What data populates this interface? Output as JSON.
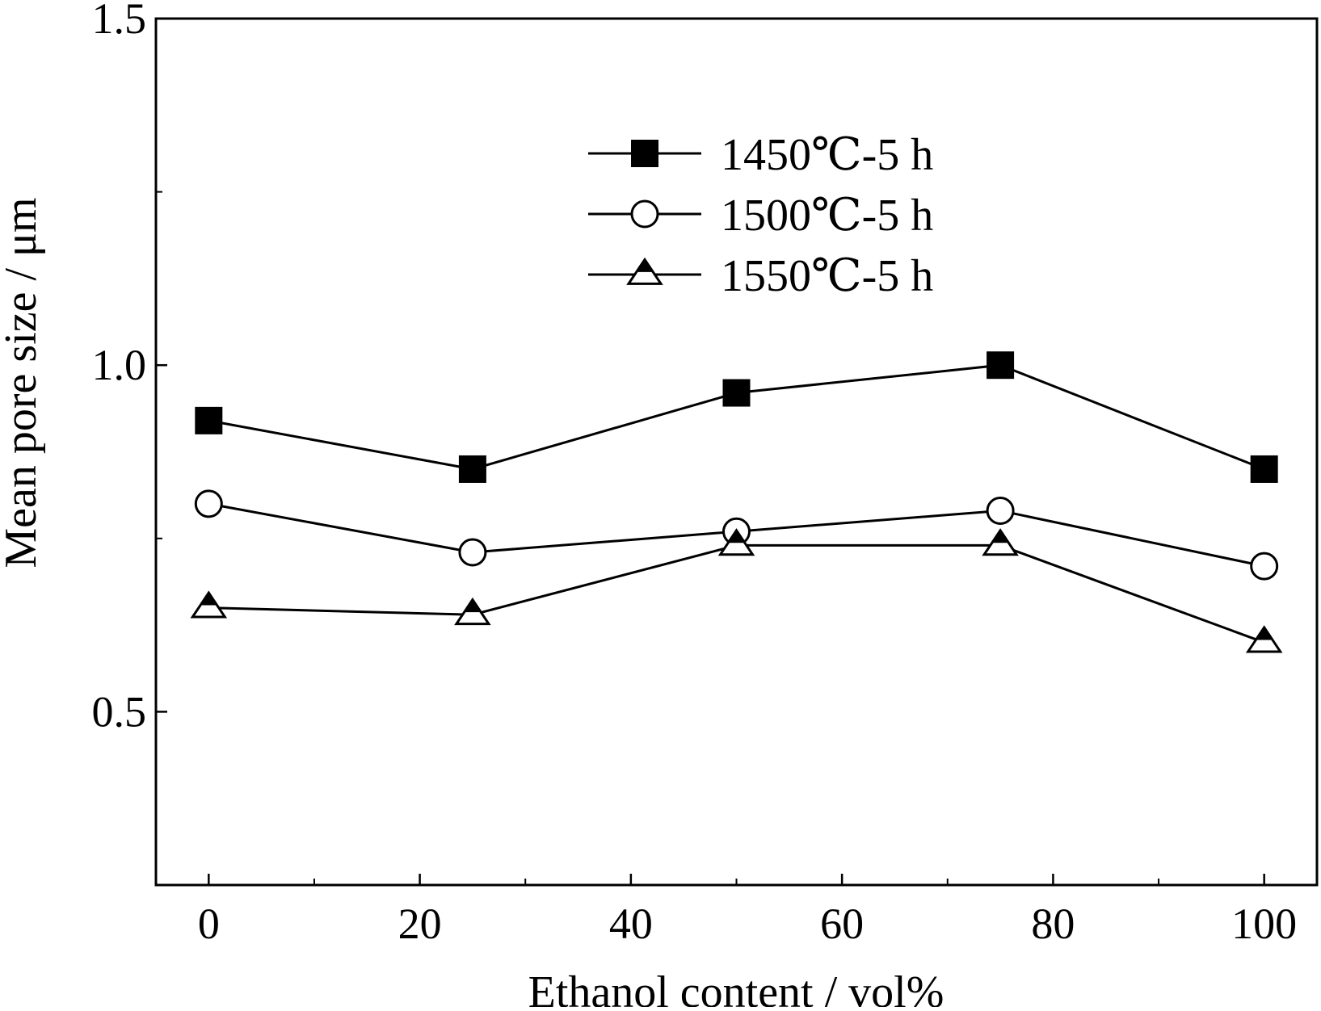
{
  "chart_data": {
    "type": "line",
    "title": "",
    "xlabel": "Ethanol content / vol%",
    "ylabel": "Mean pore size / μm",
    "xlim": [
      -5,
      105
    ],
    "ylim": [
      0.25,
      1.5
    ],
    "x_ticks": [
      0,
      20,
      40,
      60,
      80,
      100
    ],
    "x_tick_labels": [
      "0",
      "20",
      "40",
      "60",
      "80",
      "100"
    ],
    "x_minor_ticks": [
      10,
      30,
      50,
      70,
      90
    ],
    "y_ticks": [
      0.5,
      1.0,
      1.5
    ],
    "y_tick_labels": [
      "0.5",
      "1.0",
      "1.5"
    ],
    "y_minor_ticks": [
      0.75,
      1.25
    ],
    "grid": false,
    "legend_position": "upper-center",
    "series": [
      {
        "name": "1450℃-5 h",
        "marker": "filled-square",
        "x": [
          0,
          25,
          50,
          75,
          100
        ],
        "y": [
          0.92,
          0.85,
          0.96,
          1.0,
          0.85
        ]
      },
      {
        "name": "1500℃-5 h",
        "marker": "open-circle",
        "x": [
          0,
          25,
          50,
          75,
          100
        ],
        "y": [
          0.8,
          0.73,
          0.76,
          0.79,
          0.71
        ]
      },
      {
        "name": "1550℃-5 h",
        "marker": "half-filled-triangle",
        "x": [
          0,
          25,
          50,
          75,
          100
        ],
        "y": [
          0.65,
          0.64,
          0.74,
          0.74,
          0.6
        ]
      }
    ]
  }
}
